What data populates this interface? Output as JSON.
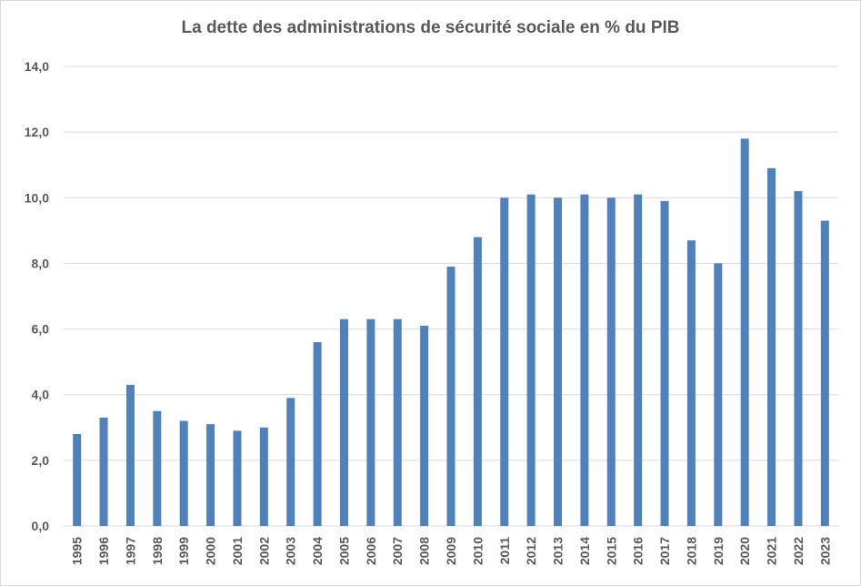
{
  "chart_data": {
    "type": "bar",
    "title": "La dette des administrations  de sécurité sociale en % du PIB",
    "xlabel": "",
    "ylabel": "",
    "ylim": [
      0,
      14
    ],
    "ytick_values": [
      0,
      2,
      4,
      6,
      8,
      10,
      12,
      14
    ],
    "ytick_labels": [
      "0,0",
      "2,0",
      "4,0",
      "6,0",
      "8,0",
      "10,0",
      "12,0",
      "14,0"
    ],
    "grid": true,
    "bar_color": "#4f81bd",
    "categories": [
      "1995",
      "1996",
      "1997",
      "1998",
      "1999",
      "2000",
      "2001",
      "2002",
      "2003",
      "2004",
      "2005",
      "2006",
      "2007",
      "2008",
      "2009",
      "2010",
      "2011",
      "2012",
      "2013",
      "2014",
      "2015",
      "2016",
      "2017",
      "2018",
      "2019",
      "2020",
      "2021",
      "2022",
      "2023"
    ],
    "values": [
      2.8,
      3.3,
      4.3,
      3.5,
      3.2,
      3.1,
      2.9,
      3.0,
      3.9,
      5.6,
      6.3,
      6.3,
      6.3,
      6.1,
      7.9,
      8.8,
      10.0,
      10.1,
      10.0,
      10.1,
      10.0,
      10.1,
      9.9,
      8.7,
      8.0,
      11.8,
      10.9,
      10.2,
      9.3
    ]
  }
}
